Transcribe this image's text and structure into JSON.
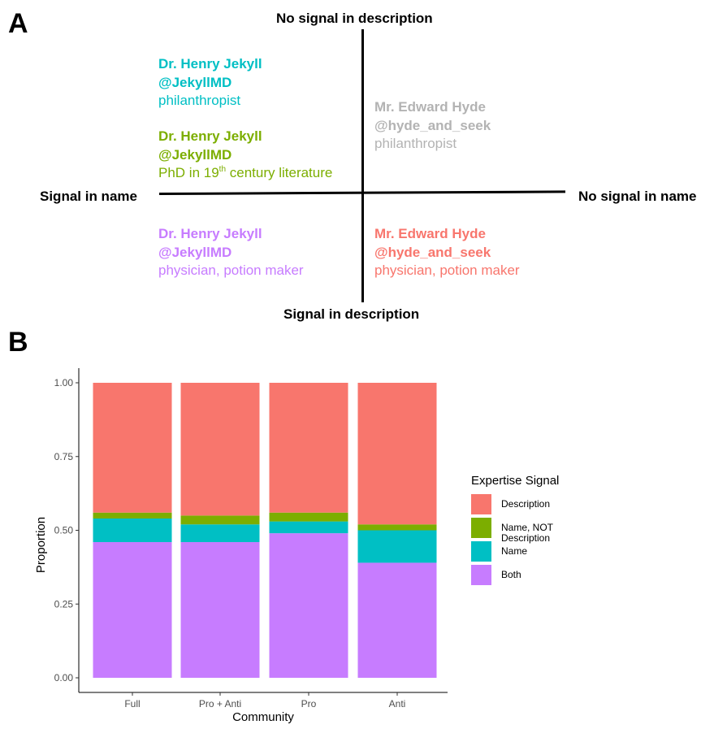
{
  "panelA": {
    "letter": "A",
    "axis_top": "No signal in description",
    "axis_bottom": "Signal in description",
    "axis_left": "Signal in name",
    "axis_right": "No signal in name",
    "quadrants": {
      "top_left_1": {
        "name": "Dr. Henry Jekyll",
        "handle": "@JekyllMD",
        "desc": "philanthropist",
        "color": "#00BFC4"
      },
      "top_left_2": {
        "name": "Dr. Henry Jekyll",
        "handle": "@JekyllMD",
        "desc_before": "PhD in 19",
        "desc_sup": "th",
        "desc_after": " century literature",
        "color": "#7CAE00"
      },
      "top_right": {
        "name": "Mr. Edward Hyde",
        "handle": "@hyde_and_seek",
        "desc": "philanthropist",
        "color": "#B3B3B3"
      },
      "bottom_left": {
        "name": "Dr. Henry Jekyll",
        "handle": "@JekyllMD",
        "desc": "physician, potion maker",
        "color": "#C77CFF"
      },
      "bottom_right": {
        "name": "Mr. Edward Hyde",
        "handle": "@hyde_and_seek",
        "desc": "physician, potion maker",
        "color": "#F8766D"
      }
    }
  },
  "panelB": {
    "letter": "B",
    "legend": {
      "title": "Expertise Signal",
      "items": [
        {
          "label": "Description",
          "color": "#F8766D"
        },
        {
          "label": "Name, NOT Description",
          "color": "#7CAE00"
        },
        {
          "label": "Name",
          "color": "#00BFC4"
        },
        {
          "label": "Both",
          "color": "#C77CFF"
        }
      ]
    }
  },
  "chart_data": {
    "type": "bar",
    "stacked": true,
    "xlabel": "Community",
    "ylabel": "Proportion",
    "categories": [
      "Full",
      "Pro + Anti",
      "Pro",
      "Anti"
    ],
    "ylim": [
      0,
      1
    ],
    "yticks": [
      "0.00",
      "0.25",
      "0.50",
      "0.75",
      "1.00"
    ],
    "grid": false,
    "legend_position": "right",
    "series": [
      {
        "name": "Both",
        "color": "#C77CFF",
        "values": [
          0.46,
          0.46,
          0.49,
          0.39
        ]
      },
      {
        "name": "Name",
        "color": "#00BFC4",
        "values": [
          0.08,
          0.06,
          0.04,
          0.11
        ]
      },
      {
        "name": "Name, NOT Description",
        "color": "#7CAE00",
        "values": [
          0.02,
          0.03,
          0.03,
          0.02
        ]
      },
      {
        "name": "Description",
        "color": "#F8766D",
        "values": [
          0.44,
          0.45,
          0.44,
          0.48
        ]
      }
    ]
  }
}
